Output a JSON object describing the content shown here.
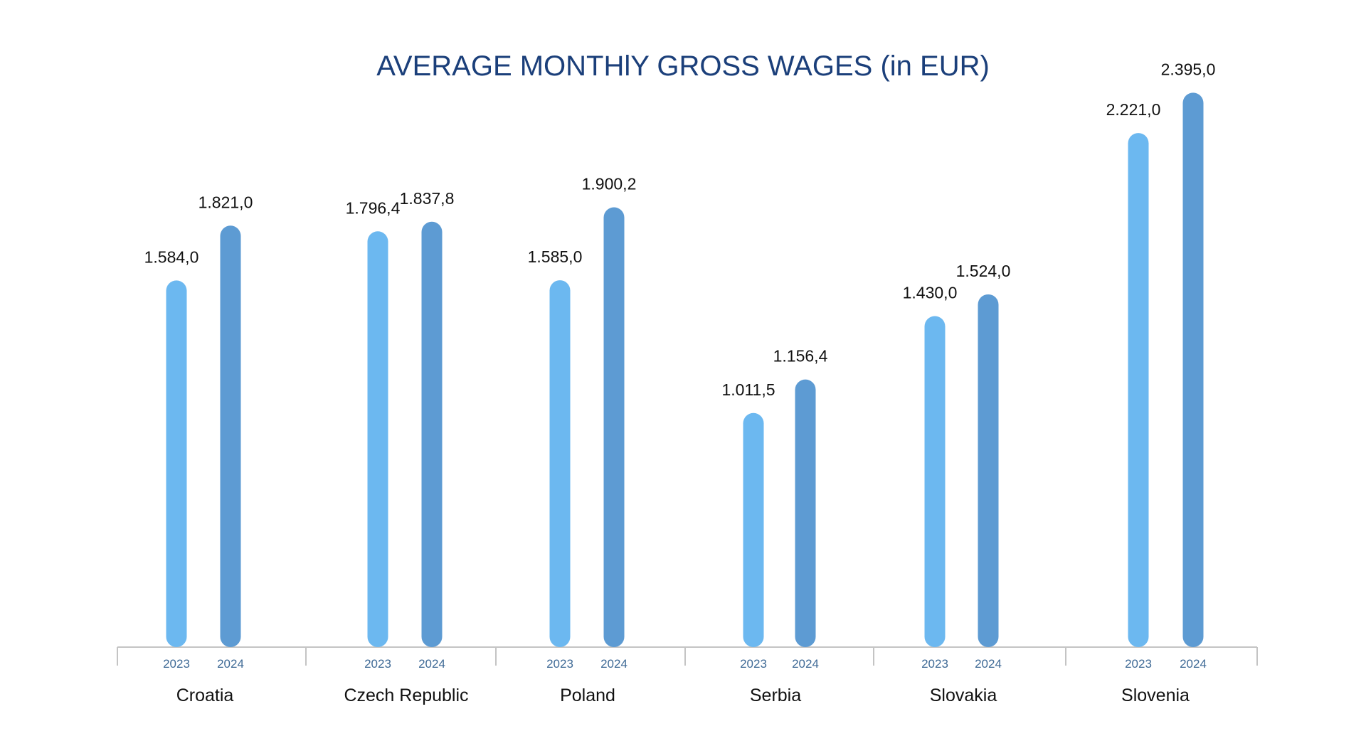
{
  "colors": {
    "title": "#1b3f7a",
    "bar_2023": "#6cb8f0",
    "bar_2024": "#5d9bd3",
    "axis": "#c4c4c4",
    "year_label": "#3f6a96",
    "text": "#111111"
  },
  "chart_data": {
    "type": "bar",
    "title": "AVERAGE MONTHlY GROSS WAGES (in EUR)",
    "xlabel": "",
    "ylabel": "",
    "ylim": [
      0,
      2395
    ],
    "grid": false,
    "legend": "none",
    "categories": [
      "Croatia",
      "Czech Republic",
      "Poland",
      "Serbia",
      "Slovakia",
      "Slovenia"
    ],
    "series": [
      {
        "year_label": "2023",
        "values": [
          1584.0,
          1796.4,
          1585.0,
          1011.5,
          1430.0,
          2221.0
        ],
        "labels": [
          "1.584,0",
          "1.796,4",
          "1.585,0",
          "1.011,5",
          "1.430,0",
          "2.221,0"
        ]
      },
      {
        "year_label": "2024",
        "values": [
          1821.0,
          1837.8,
          1900.2,
          1156.4,
          1524.0,
          2395.0
        ],
        "labels": [
          "1.821,0",
          "1.837,8",
          "1.900,2",
          "1.156,4",
          "1.524,0",
          "2.395,0"
        ]
      }
    ]
  }
}
